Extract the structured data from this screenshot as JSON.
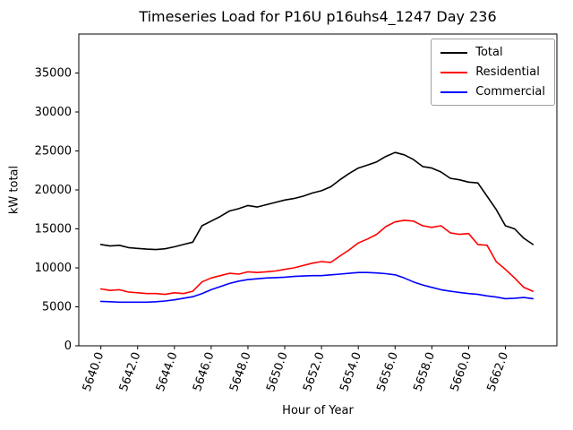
{
  "chart_data": {
    "type": "line",
    "title": "Timeseries Load for P16U p16uhs4_1247  Day 236",
    "xlabel": "Hour of Year",
    "ylabel": "kW total",
    "grid": false,
    "legend_position": "upper right",
    "xlim": [
      5638.8,
      5664.8
    ],
    "ylim": [
      0,
      40000
    ],
    "xticks": {
      "values": [
        5640,
        5642,
        5644,
        5646,
        5648,
        5650,
        5652,
        5654,
        5656,
        5658,
        5660,
        5662
      ],
      "labels": [
        "5640.0",
        "5642.0",
        "5644.0",
        "5646.0",
        "5648.0",
        "5650.0",
        "5652.0",
        "5654.0",
        "5656.0",
        "5658.0",
        "5660.0",
        "5662.0"
      ]
    },
    "yticks": {
      "values": [
        0,
        5000,
        10000,
        15000,
        20000,
        25000,
        30000,
        35000
      ],
      "labels": [
        "0",
        "5000",
        "10000",
        "15000",
        "20000",
        "25000",
        "30000",
        "35000"
      ]
    },
    "x": [
      5640.0,
      5640.5,
      5641.0,
      5641.5,
      5642.0,
      5642.5,
      5643.0,
      5643.5,
      5644.0,
      5644.5,
      5645.0,
      5645.5,
      5646.0,
      5646.5,
      5647.0,
      5647.5,
      5648.0,
      5648.5,
      5649.0,
      5649.5,
      5650.0,
      5650.5,
      5651.0,
      5651.5,
      5652.0,
      5652.5,
      5653.0,
      5653.5,
      5654.0,
      5654.5,
      5655.0,
      5655.5,
      5656.0,
      5656.5,
      5657.0,
      5657.5,
      5658.0,
      5658.5,
      5659.0,
      5659.5,
      5660.0,
      5660.5,
      5661.0,
      5661.5,
      5662.0,
      5662.5,
      5663.0,
      5663.5
    ],
    "series": [
      {
        "name": "Total",
        "color": "#000000",
        "values": [
          13000,
          12800,
          12900,
          12600,
          12500,
          12400,
          12350,
          12450,
          12700,
          13000,
          13300,
          15400,
          16000,
          16600,
          17300,
          17600,
          18000,
          17800,
          18100,
          18400,
          18700,
          18900,
          19200,
          19600,
          19900,
          20400,
          21300,
          22100,
          22800,
          23200,
          23600,
          24300,
          24800,
          24500,
          23900,
          23000,
          22800,
          22300,
          21500,
          21300,
          21000,
          20900,
          19200,
          17500,
          15400,
          15000,
          13800,
          13000
        ]
      },
      {
        "name": "Residential",
        "color": "#ff0000",
        "values": [
          7300,
          7100,
          7200,
          6900,
          6800,
          6700,
          6700,
          6600,
          6800,
          6700,
          7000,
          8200,
          8700,
          9000,
          9300,
          9200,
          9500,
          9400,
          9500,
          9600,
          9800,
          10000,
          10300,
          10600,
          10800,
          10700,
          11500,
          12300,
          13200,
          13700,
          14300,
          15300,
          15900,
          16100,
          16000,
          15400,
          15200,
          15400,
          14500,
          14300,
          14400,
          13000,
          12900,
          10800,
          9800,
          8700,
          7500,
          7000
        ]
      },
      {
        "name": "Commercial",
        "color": "#0000ff",
        "values": [
          5700,
          5650,
          5600,
          5600,
          5600,
          5600,
          5650,
          5750,
          5900,
          6100,
          6300,
          6700,
          7200,
          7600,
          8000,
          8300,
          8500,
          8600,
          8700,
          8750,
          8800,
          8900,
          8950,
          9000,
          9000,
          9100,
          9200,
          9300,
          9400,
          9400,
          9350,
          9250,
          9100,
          8700,
          8200,
          7800,
          7500,
          7200,
          7000,
          6850,
          6700,
          6600,
          6400,
          6250,
          6050,
          6100,
          6200,
          6050
        ]
      }
    ]
  }
}
